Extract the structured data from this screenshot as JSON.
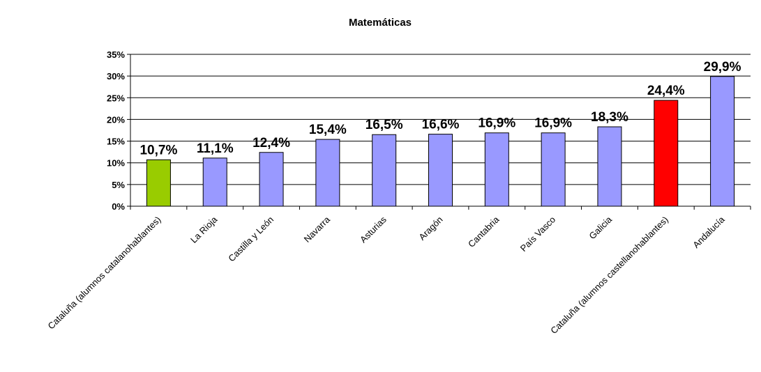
{
  "chart_data": {
    "type": "bar",
    "title": "Matemáticas",
    "xlabel": "",
    "ylabel": "",
    "ylim": [
      0,
      35
    ],
    "yticks": [
      "0%",
      "5%",
      "10%",
      "15%",
      "20%",
      "25%",
      "30%",
      "35%"
    ],
    "ytick_values": [
      0,
      5,
      10,
      15,
      20,
      25,
      30,
      35
    ],
    "grid": true,
    "legend": "none",
    "categories": [
      "Cataluña (alumnos catalanohablantes)",
      "La Rioja",
      "Castilla y León",
      "Navarra",
      "Asturias",
      "Aragón",
      "Cantabria",
      "País Vasco",
      "Galicia",
      "Cataluña (alumnos castellanohablantes)",
      "Andalucía"
    ],
    "values": [
      10.7,
      11.1,
      12.4,
      15.4,
      16.5,
      16.6,
      16.9,
      16.9,
      18.3,
      24.4,
      29.9
    ],
    "data_labels": [
      "10,7%",
      "11,1%",
      "12,4%",
      "15,4%",
      "16,5%",
      "16,6%",
      "16,9%",
      "16,9%",
      "18,3%",
      "24,4%",
      "29,9%"
    ],
    "colors": [
      "#99cc00",
      "#9999ff",
      "#9999ff",
      "#9999ff",
      "#9999ff",
      "#9999ff",
      "#9999ff",
      "#9999ff",
      "#9999ff",
      "#ff0000",
      "#9999ff"
    ]
  }
}
